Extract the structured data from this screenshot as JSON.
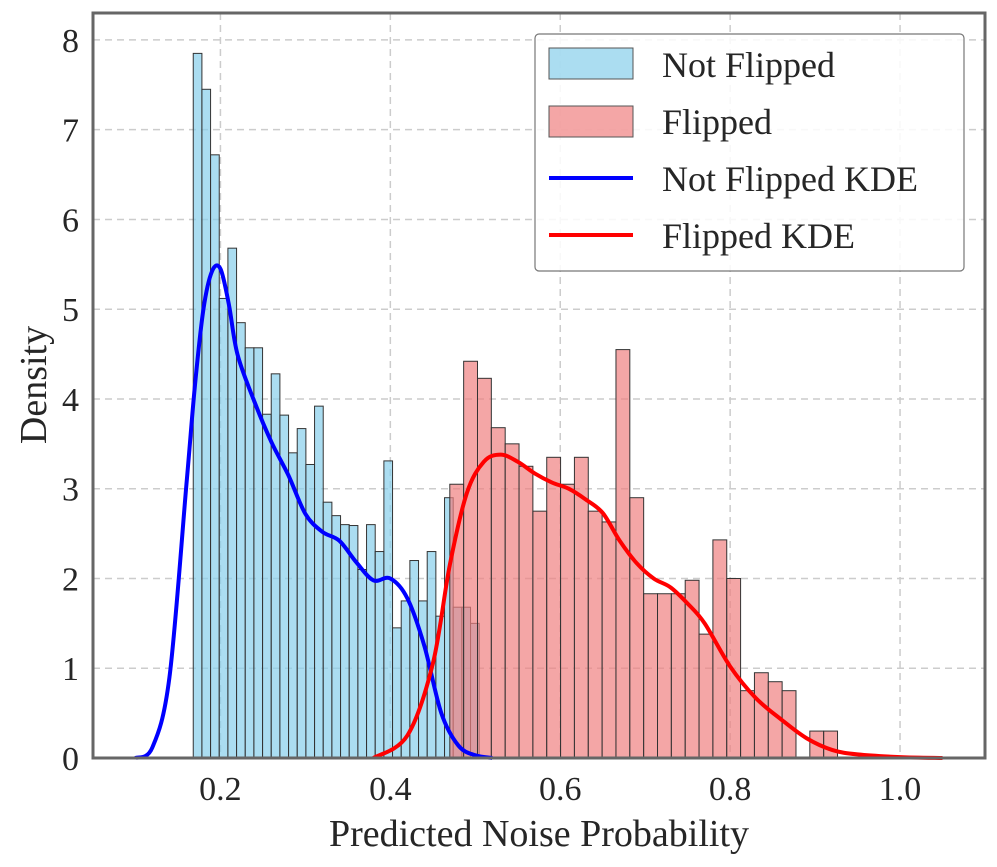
{
  "chart_data": {
    "type": "bar",
    "subtype": "histogram-with-kde",
    "title": "",
    "xlabel": "Predicted Noise Probability",
    "ylabel": "Density",
    "xlim": [
      0.05,
      1.1
    ],
    "ylim": [
      0,
      8.3
    ],
    "xticks": [
      0.2,
      0.4,
      0.6,
      0.8,
      1.0
    ],
    "xtick_labels": [
      "0.2",
      "0.4",
      "0.6",
      "0.8",
      "1.0"
    ],
    "yticks": [
      0,
      1,
      2,
      3,
      4,
      5,
      6,
      7,
      8
    ],
    "ytick_labels": [
      "0",
      "1",
      "2",
      "3",
      "4",
      "5",
      "6",
      "7",
      "8"
    ],
    "grid": true,
    "legend_position": "top-right",
    "series": [
      {
        "name": "Not Flipped",
        "kind": "histogram",
        "color": "#87ceeb",
        "bin_start": 0.168,
        "bin_width": 0.0102,
        "values": [
          7.85,
          7.45,
          6.72,
          5.12,
          5.68,
          4.85,
          4.57,
          4.57,
          3.83,
          4.28,
          3.82,
          3.4,
          3.67,
          3.27,
          3.92,
          2.85,
          2.7,
          2.6,
          2.59,
          2.1,
          2.6,
          2.3,
          3.31,
          1.45,
          1.75,
          2.2,
          1.75,
          2.3,
          1.58,
          2.9,
          1.68,
          1.68,
          1.5
        ]
      },
      {
        "name": "Flipped",
        "kind": "histogram",
        "color": "#f08080",
        "bin_start": 0.47,
        "bin_width": 0.0163,
        "values": [
          3.05,
          4.42,
          4.23,
          3.68,
          3.5,
          3.25,
          2.75,
          3.35,
          3.05,
          3.35,
          2.75,
          2.63,
          4.55,
          2.9,
          1.83,
          1.83,
          1.83,
          1.98,
          1.38,
          2.43,
          2.0,
          0.75,
          0.95,
          0.85,
          0.75,
          0.0,
          0.3,
          0.3
        ]
      },
      {
        "name": "Not Flipped KDE",
        "kind": "kde",
        "color": "#0000ff",
        "x": [
          0.1,
          0.12,
          0.14,
          0.16,
          0.17,
          0.18,
          0.19,
          0.2,
          0.21,
          0.22,
          0.24,
          0.26,
          0.28,
          0.3,
          0.32,
          0.34,
          0.36,
          0.38,
          0.4,
          0.42,
          0.44,
          0.46,
          0.48,
          0.5,
          0.52
        ],
        "y": [
          0.0,
          0.12,
          0.9,
          3.05,
          4.15,
          5.0,
          5.42,
          5.45,
          5.05,
          4.5,
          3.97,
          3.52,
          3.15,
          2.72,
          2.52,
          2.42,
          2.18,
          1.98,
          2.0,
          1.78,
          1.25,
          0.5,
          0.14,
          0.03,
          0.0
        ]
      },
      {
        "name": "Flipped KDE",
        "kind": "kde",
        "color": "#ff0000",
        "x": [
          0.38,
          0.42,
          0.45,
          0.47,
          0.49,
          0.51,
          0.53,
          0.55,
          0.57,
          0.59,
          0.61,
          0.63,
          0.65,
          0.67,
          0.69,
          0.71,
          0.73,
          0.75,
          0.77,
          0.8,
          0.83,
          0.86,
          0.89,
          0.92,
          0.95,
          1.0,
          1.05
        ],
        "y": [
          0.0,
          0.25,
          1.05,
          2.15,
          2.95,
          3.3,
          3.38,
          3.3,
          3.17,
          3.07,
          3.0,
          2.88,
          2.73,
          2.42,
          2.17,
          2.0,
          1.9,
          1.72,
          1.5,
          1.02,
          0.67,
          0.43,
          0.22,
          0.09,
          0.04,
          0.01,
          0.0
        ]
      }
    ]
  }
}
